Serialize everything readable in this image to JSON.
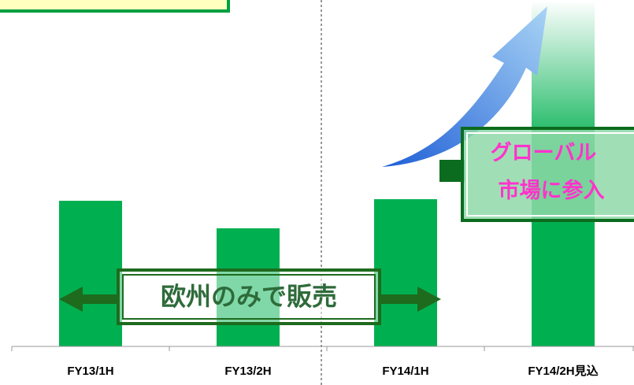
{
  "chart_data": {
    "type": "bar",
    "categories": [
      "FY13/1H",
      "FY13/2H",
      "FY14/1H",
      "FY14/2H見込"
    ],
    "values": [
      185,
      150,
      187,
      440
    ],
    "color": "#00b050",
    "ylim": [
      0,
      440
    ],
    "annotations": [
      "欧州のみで販売",
      "グローバル",
      "市場に参入"
    ]
  }
}
